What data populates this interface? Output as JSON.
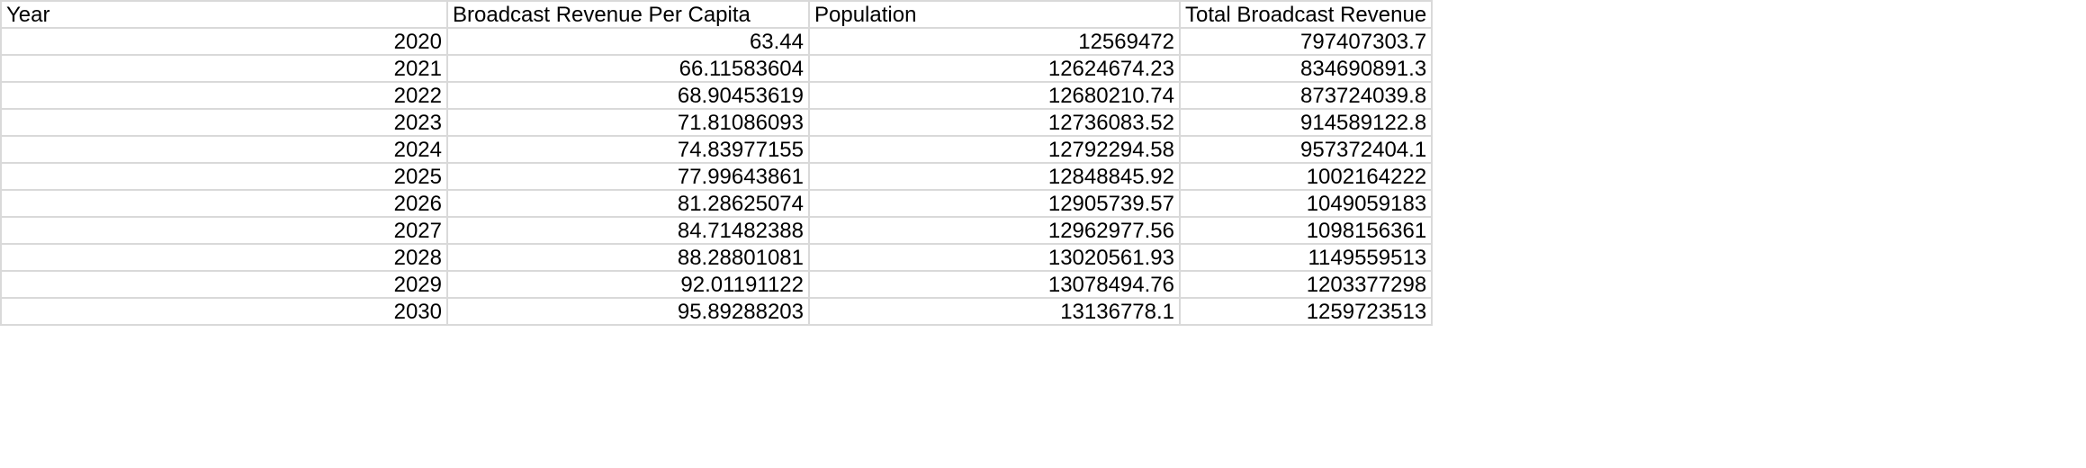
{
  "spreadsheet": {
    "headers": [
      "Year",
      "Broadcast Revenue Per Capita",
      "Population",
      "Total Broadcast Revenue"
    ],
    "rows": [
      [
        "2020",
        "63.44",
        "12569472",
        "797407303.7"
      ],
      [
        "2021",
        "66.11583604",
        "12624674.23",
        "834690891.3"
      ],
      [
        "2022",
        "68.90453619",
        "12680210.74",
        "873724039.8"
      ],
      [
        "2023",
        "71.81086093",
        "12736083.52",
        "914589122.8"
      ],
      [
        "2024",
        "74.83977155",
        "12792294.58",
        "957372404.1"
      ],
      [
        "2025",
        "77.99643861",
        "12848845.92",
        "1002164222"
      ],
      [
        "2026",
        "81.28625074",
        "12905739.57",
        "1049059183"
      ],
      [
        "2027",
        "84.71482388",
        "12962977.56",
        "1098156361"
      ],
      [
        "2028",
        "88.28801081",
        "13020561.93",
        "1149559513"
      ],
      [
        "2029",
        "92.01191122",
        "13078494.76",
        "1203377298"
      ],
      [
        "2030",
        "95.89288203",
        "13136778.1",
        "1259723513"
      ]
    ]
  },
  "colors": {
    "gridline": "#d9d9d9",
    "background": "#ffffff",
    "text": "#000000"
  }
}
